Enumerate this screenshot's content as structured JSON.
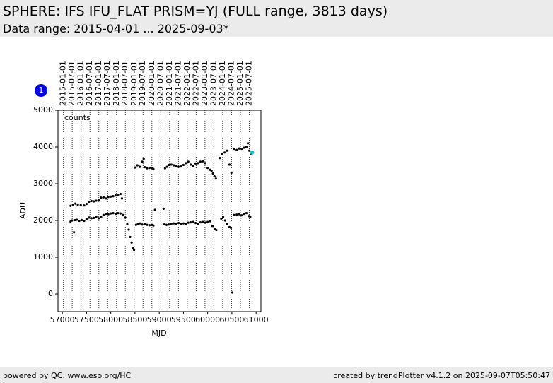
{
  "header": {
    "title": "SPHERE: IFS IFU_FLAT PRISM=YJ (FULL range, 3813 days)",
    "subtitle": "Data range: 2015-04-01 ... 2025-09-03*"
  },
  "footer": {
    "left": "powered by QC: www.eso.org/HC",
    "right": "created by trendPlotter v4.1.2 on 2025-09-07T05:50:47"
  },
  "chart_data": {
    "type": "scatter",
    "badge": "1",
    "annotation": "counts",
    "xlabel": "MJD",
    "ylabel": "ADU",
    "xlim": [
      56910,
      61100
    ],
    "ylim": [
      -480,
      5000
    ],
    "xticks": [
      57000,
      57500,
      58000,
      58500,
      59000,
      59500,
      60000,
      60500,
      61000
    ],
    "yticks": [
      0,
      1000,
      2000,
      3000,
      4000,
      5000
    ],
    "top_ticks": [
      {
        "value": 57023,
        "label": "2015-01-01"
      },
      {
        "value": 57204,
        "label": "2015-07-01"
      },
      {
        "value": 57388,
        "label": "2016-01-01"
      },
      {
        "value": 57570,
        "label": "2016-07-01"
      },
      {
        "value": 57754,
        "label": "2017-01-01"
      },
      {
        "value": 57935,
        "label": "2017-07-01"
      },
      {
        "value": 58119,
        "label": "2018-01-01"
      },
      {
        "value": 58300,
        "label": "2018-07-01"
      },
      {
        "value": 58484,
        "label": "2019-01-01"
      },
      {
        "value": 58665,
        "label": "2019-07-01"
      },
      {
        "value": 58849,
        "label": "2020-01-01"
      },
      {
        "value": 59031,
        "label": "2020-07-01"
      },
      {
        "value": 59215,
        "label": "2021-01-01"
      },
      {
        "value": 59396,
        "label": "2021-07-01"
      },
      {
        "value": 59580,
        "label": "2022-01-01"
      },
      {
        "value": 59761,
        "label": "2022-07-01"
      },
      {
        "value": 59945,
        "label": "2023-01-01"
      },
      {
        "value": 60126,
        "label": "2023-07-01"
      },
      {
        "value": 60310,
        "label": "2024-01-01"
      },
      {
        "value": 60492,
        "label": "2024-07-01"
      },
      {
        "value": 60676,
        "label": "2025-01-01"
      },
      {
        "value": 60857,
        "label": "2025-07-01"
      }
    ],
    "series": [
      {
        "color": "#000000",
        "x": [
          57170,
          57200,
          57240,
          57260,
          57300,
          57350,
          57400,
          57450,
          57500,
          57550,
          57600,
          57650,
          57700,
          57750,
          57800,
          57850,
          57900,
          57950,
          58000,
          58050,
          58100,
          58150,
          58200,
          58250,
          58300,
          58340,
          58370,
          58400,
          58430,
          58460,
          58480,
          58520,
          58560,
          58600,
          58650,
          58700,
          58750,
          58800,
          58850,
          58880,
          59110,
          59150,
          59200,
          59250,
          59300,
          59350,
          59400,
          59450,
          59500,
          59550,
          59600,
          59650,
          59700,
          59750,
          59800,
          59850,
          59900,
          59950,
          60000,
          60050,
          60100,
          60150,
          60180,
          60280,
          60320,
          60360,
          60400,
          60450,
          60480,
          60540,
          60600,
          60650,
          60700,
          60750,
          60800,
          60850,
          60880,
          57170,
          57220,
          57270,
          57320,
          57380,
          57450,
          57500,
          57550,
          57600,
          57650,
          57700,
          57750,
          57800,
          57850,
          57900,
          57950,
          58000,
          58050,
          58100,
          58150,
          58200,
          58230,
          58500,
          58550,
          58600,
          58650,
          58680,
          58700,
          58750,
          58800,
          58850,
          58880,
          59120,
          59160,
          59200,
          59250,
          59300,
          59350,
          59400,
          59450,
          59500,
          59550,
          59600,
          59650,
          59700,
          59750,
          59800,
          59850,
          59900,
          59950,
          60000,
          60050,
          60080,
          60110,
          60140,
          60170,
          60250,
          60300,
          60350,
          60400,
          60450,
          60490,
          60550,
          60600,
          60650,
          60700,
          60750,
          60800,
          60830,
          60860,
          60890,
          58912,
          59090,
          60510
        ],
        "y": [
          1970,
          2000,
          1680,
          2010,
          2020,
          1990,
          2010,
          1990,
          2040,
          2080,
          2060,
          2070,
          2100,
          2060,
          2090,
          2150,
          2180,
          2170,
          2190,
          2200,
          2180,
          2200,
          2190,
          2150,
          2080,
          1900,
          1750,
          1550,
          1400,
          1250,
          1200,
          1880,
          1900,
          1920,
          1890,
          1910,
          1880,
          1870,
          1880,
          1860,
          1900,
          1880,
          1890,
          1910,
          1920,
          1900,
          1930,
          1900,
          1920,
          1910,
          1940,
          1950,
          1960,
          1930,
          1900,
          1950,
          1960,
          1940,
          1960,
          1980,
          1850,
          1780,
          1740,
          2050,
          2100,
          2000,
          1900,
          1820,
          1800,
          2150,
          2160,
          2170,
          2140,
          2180,
          2200,
          2120,
          2100,
          2400,
          2430,
          2460,
          2430,
          2420,
          2410,
          2450,
          2510,
          2530,
          2520,
          2540,
          2550,
          2620,
          2630,
          2600,
          2640,
          2650,
          2660,
          2680,
          2700,
          2720,
          2600,
          3440,
          3500,
          3460,
          3600,
          3680,
          3450,
          3420,
          3430,
          3420,
          3400,
          3420,
          3460,
          3510,
          3520,
          3500,
          3480,
          3460,
          3470,
          3510,
          3560,
          3600,
          3520,
          3480,
          3550,
          3560,
          3600,
          3610,
          3560,
          3430,
          3380,
          3350,
          3280,
          3200,
          3140,
          3700,
          3810,
          3850,
          3900,
          3520,
          3300,
          3950,
          3920,
          3960,
          3950,
          3980,
          4000,
          4100,
          3900,
          3800,
          2290,
          2320,
          40
        ]
      },
      {
        "color": "#17becf",
        "x": [
          60915
        ],
        "y": [
          3850
        ]
      }
    ]
  }
}
